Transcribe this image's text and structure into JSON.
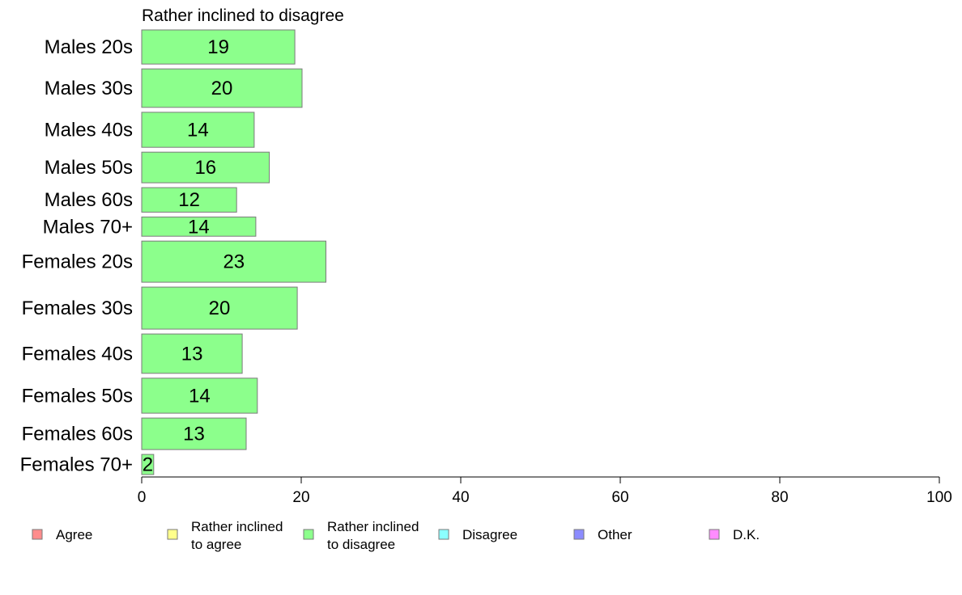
{
  "chart_data": {
    "type": "bar",
    "orientation": "horizontal",
    "title": "Rather inclined to disagree",
    "categories": [
      "Males 20s",
      "Males 30s",
      "Males 40s",
      "Males 50s",
      "Males 60s",
      "Males 70+",
      "Females 20s",
      "Females 30s",
      "Females 40s",
      "Females 50s",
      "Females 60s",
      "Females 70+"
    ],
    "values": [
      19,
      20,
      14,
      16,
      12,
      14,
      23,
      20,
      13,
      14,
      13,
      2
    ],
    "value_labels": [
      "19",
      "20",
      "14",
      "16",
      "12",
      "14",
      "23",
      "20",
      "13",
      "14",
      "13",
      "2"
    ],
    "bar_values": [
      19.2,
      20.1,
      14.1,
      16.0,
      11.9,
      14.3,
      23.1,
      19.5,
      12.6,
      14.5,
      13.1,
      1.5
    ],
    "relative_widths": [
      3.9,
      4.4,
      4.0,
      3.5,
      2.8,
      2.2,
      4.7,
      4.8,
      4.5,
      4.0,
      3.6,
      2.3
    ],
    "xlim": [
      0,
      100
    ],
    "xticks": [
      "0",
      "20",
      "40",
      "60",
      "80",
      "100"
    ],
    "bar_color": "#8cff8c",
    "bar_stroke": "#7a7a7a",
    "legend": [
      {
        "label": [
          "Agree"
        ],
        "color": "#ff8c8c"
      },
      {
        "label": [
          "Rather inclined",
          "to agree"
        ],
        "color": "#ffff8c"
      },
      {
        "label": [
          "Rather inclined",
          "to disagree"
        ],
        "color": "#8cff8c"
      },
      {
        "label": [
          "Disagree"
        ],
        "color": "#8cffff"
      },
      {
        "label": [
          "Other"
        ],
        "color": "#8c8cff"
      },
      {
        "label": [
          "D.K."
        ],
        "color": "#ff8cff"
      }
    ],
    "legend_position": "bottom",
    "grid": false
  }
}
